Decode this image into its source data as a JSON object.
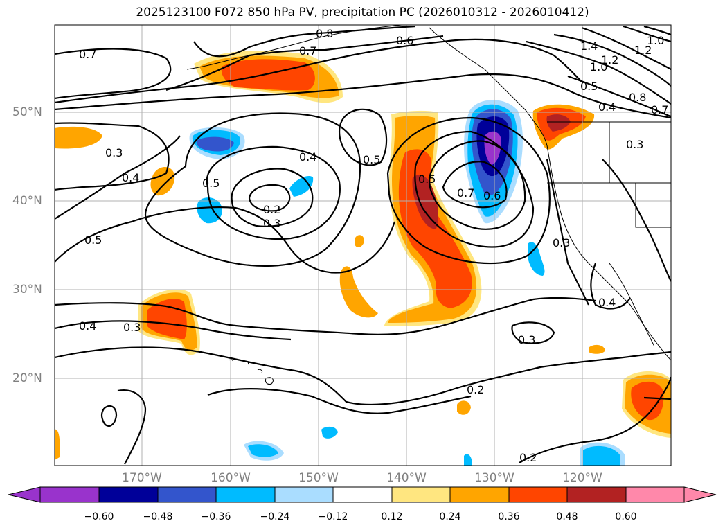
{
  "title": "2025123100 F072 850 hPa PV, precipitation PC (2026010312 - 2026010412)",
  "map": {
    "lat_labels": [
      "50°N",
      "40°N",
      "30°N",
      "20°N"
    ],
    "lon_labels": [
      "170°W",
      "160°W",
      "150°W",
      "140°W",
      "130°W",
      "120°W"
    ],
    "contour_labels": [
      "0.7",
      "0.8",
      "0.7",
      "0.6",
      "1.4",
      "1.2",
      "1.0",
      "1.2",
      "1.0",
      "0.5",
      "0.4",
      "0.8",
      "0.7",
      "0.3",
      "0.4",
      "0.5",
      "0.4",
      "0.5",
      "0.2",
      "0.3",
      "0.5",
      "0.7",
      "0.6",
      "0.3",
      "0.3",
      "0.5",
      "0.4",
      "0.3",
      "0.4",
      "0.3",
      "0.2",
      "0.2"
    ]
  },
  "colorbar": {
    "ticks": [
      "−0.60",
      "−0.48",
      "−0.36",
      "−0.24",
      "−0.12",
      "0.12",
      "0.24",
      "0.36",
      "0.48",
      "0.60"
    ],
    "colors": [
      "#9933cc",
      "#000099",
      "#3355cc",
      "#00bbff",
      "#aaddff",
      "#ffffff",
      "#ffe680",
      "#ffa500",
      "#ff4500",
      "#b22222",
      "#ff88aa"
    ]
  }
}
